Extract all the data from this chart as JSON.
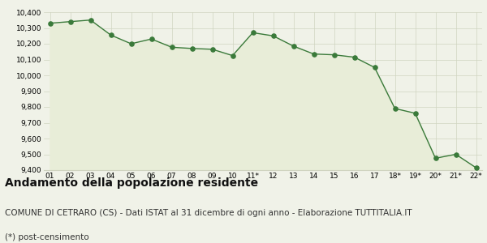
{
  "x_labels": [
    "01",
    "02",
    "03",
    "04",
    "05",
    "06",
    "07",
    "08",
    "09",
    "10",
    "11*",
    "12",
    "13",
    "14",
    "15",
    "16",
    "17",
    "18*",
    "19*",
    "20*",
    "21*",
    "22*"
  ],
  "y_values": [
    10330,
    10340,
    10350,
    10255,
    10200,
    10230,
    10178,
    10170,
    10165,
    10125,
    10270,
    10250,
    10185,
    10135,
    10130,
    10115,
    10050,
    9790,
    9760,
    9475,
    9500,
    9415
  ],
  "ylim": [
    9400,
    10400
  ],
  "yticks": [
    9400,
    9500,
    9600,
    9700,
    9800,
    9900,
    10000,
    10100,
    10200,
    10300,
    10400
  ],
  "line_color": "#3a7a3a",
  "fill_color": "#e8edd8",
  "marker_color": "#3a7a3a",
  "bg_color": "#f0f2e8",
  "grid_color": "#d0d4c0",
  "title": "Andamento della popolazione residente",
  "subtitle": "COMUNE DI CETRARO (CS) - Dati ISTAT al 31 dicembre di ogni anno - Elaborazione TUTTITALIA.IT",
  "footnote": "(*) post-censimento",
  "title_fontsize": 10,
  "subtitle_fontsize": 7.5,
  "footnote_fontsize": 7.5
}
